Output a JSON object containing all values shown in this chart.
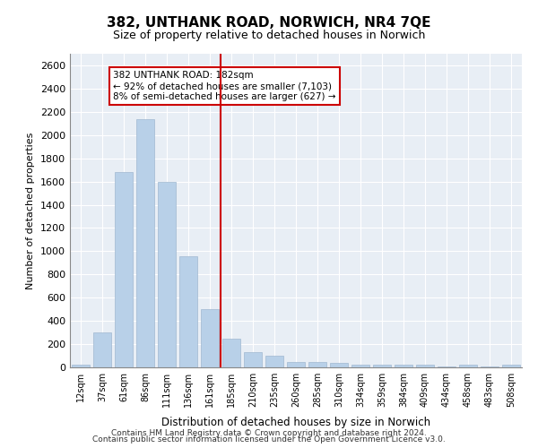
{
  "title1": "382, UNTHANK ROAD, NORWICH, NR4 7QE",
  "title2": "Size of property relative to detached houses in Norwich",
  "xlabel": "Distribution of detached houses by size in Norwich",
  "ylabel": "Number of detached properties",
  "categories": [
    "12sqm",
    "37sqm",
    "61sqm",
    "86sqm",
    "111sqm",
    "136sqm",
    "161sqm",
    "185sqm",
    "210sqm",
    "235sqm",
    "260sqm",
    "285sqm",
    "310sqm",
    "334sqm",
    "359sqm",
    "384sqm",
    "409sqm",
    "434sqm",
    "458sqm",
    "483sqm",
    "508sqm"
  ],
  "values": [
    25,
    300,
    1680,
    2140,
    1600,
    960,
    505,
    248,
    130,
    102,
    50,
    50,
    35,
    20,
    20,
    20,
    20,
    8,
    20,
    5,
    25
  ],
  "bar_color": "#b8d0e8",
  "bar_edgecolor": "#a0b8d0",
  "vline_x": 7,
  "vline_color": "#cc0000",
  "annotation_text": "382 UNTHANK ROAD: 182sqm\n← 92% of detached houses are smaller (7,103)\n8% of semi-detached houses are larger (627) →",
  "annotation_box_color": "#ffffff",
  "annotation_box_edgecolor": "#cc0000",
  "ylim": [
    0,
    2700
  ],
  "yticks": [
    0,
    200,
    400,
    600,
    800,
    1000,
    1200,
    1400,
    1600,
    1800,
    2000,
    2200,
    2400,
    2600
  ],
  "background_color": "#e8eef5",
  "footer1": "Contains HM Land Registry data © Crown copyright and database right 2024.",
  "footer2": "Contains public sector information licensed under the Open Government Licence v3.0."
}
